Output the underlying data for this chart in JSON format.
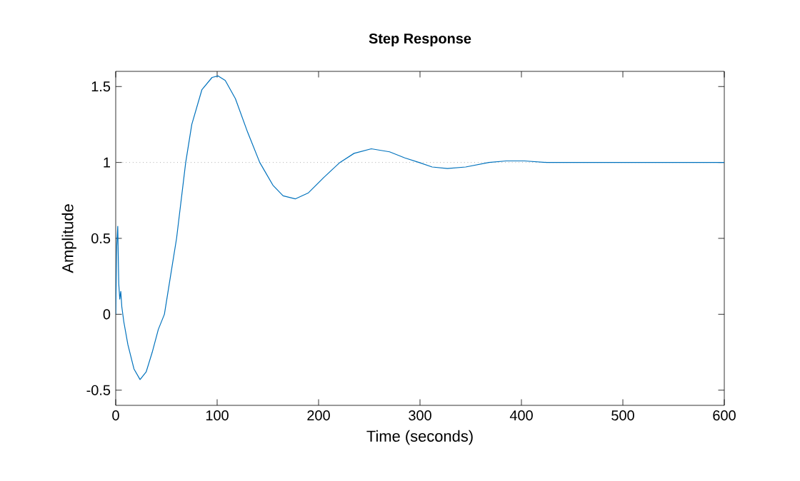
{
  "chart_data": {
    "type": "line",
    "title": "Step Response",
    "xlabel": "Time (seconds)",
    "ylabel": "Amplitude",
    "xlim": [
      0,
      600
    ],
    "xticks": [
      0,
      100,
      200,
      300,
      400,
      500,
      600
    ],
    "ylim": [
      -0.6,
      1.6
    ],
    "yticks": [
      -0.5,
      0,
      0.5,
      1,
      1.5
    ],
    "ref_lines": [
      {
        "axis": "y",
        "value": 1,
        "color": "#808080",
        "line_style": "dotted"
      }
    ],
    "series": [
      {
        "color": "#0072bd",
        "x": [
          0,
          1,
          2,
          3,
          4,
          5,
          6,
          8,
          12,
          18,
          24,
          30,
          36,
          42,
          48,
          54,
          60,
          69,
          75,
          85,
          95,
          101,
          108,
          118,
          130,
          142,
          155,
          165,
          177,
          190,
          205,
          221,
          235,
          252,
          270,
          285,
          299,
          312,
          327,
          345,
          368,
          385,
          403,
          425,
          445,
          470,
          500,
          530,
          600
        ],
        "values": [
          0,
          0.45,
          0.58,
          0.2,
          0.1,
          0.15,
          0.05,
          -0.05,
          -0.2,
          -0.36,
          -0.43,
          -0.38,
          -0.25,
          -0.1,
          0,
          0.25,
          0.5,
          1,
          1.25,
          1.48,
          1.56,
          1.57,
          1.54,
          1.42,
          1.2,
          1,
          0.85,
          0.78,
          0.76,
          0.8,
          0.9,
          1,
          1.06,
          1.09,
          1.07,
          1.03,
          1,
          0.97,
          0.96,
          0.97,
          1,
          1.01,
          1.01,
          1,
          1,
          1,
          1,
          1,
          1
        ]
      }
    ]
  }
}
